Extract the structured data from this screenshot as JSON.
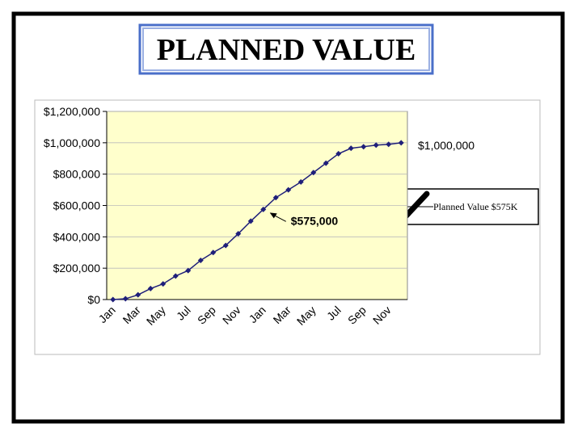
{
  "chart_data": {
    "type": "line",
    "title": "PLANNED VALUE",
    "categories": [
      "Jan",
      null,
      "Mar",
      null,
      "May",
      null,
      "Jul",
      null,
      "Sep",
      null,
      "Nov",
      null,
      "Jan",
      null,
      "Mar",
      null,
      "May",
      null,
      "Jul",
      null,
      "Sep",
      null,
      "Nov",
      null
    ],
    "series": [
      {
        "name": "Planned Value $575K",
        "color": "#1f1f7a",
        "values": [
          0,
          5000,
          30000,
          70000,
          100000,
          150000,
          185000,
          250000,
          300000,
          345000,
          420000,
          500000,
          575000,
          650000,
          700000,
          750000,
          810000,
          870000,
          930000,
          965000,
          975000,
          985000,
          990000,
          1000000
        ]
      }
    ],
    "ylim": [
      0,
      1200000
    ],
    "yticks": [
      {
        "value": 0,
        "label": "$0"
      },
      {
        "value": 200000,
        "label": "$200,000"
      },
      {
        "value": 400000,
        "label": "$400,000"
      },
      {
        "value": 600000,
        "label": "$600,000"
      },
      {
        "value": 800000,
        "label": "$800,000"
      },
      {
        "value": 1000000,
        "label": "$1,000,000"
      },
      {
        "value": 1200000,
        "label": "$1,200,000"
      }
    ],
    "grid": true,
    "annotations": [
      "$575,000",
      "$1,000,000"
    ],
    "plot_background": "#ffffcc"
  }
}
